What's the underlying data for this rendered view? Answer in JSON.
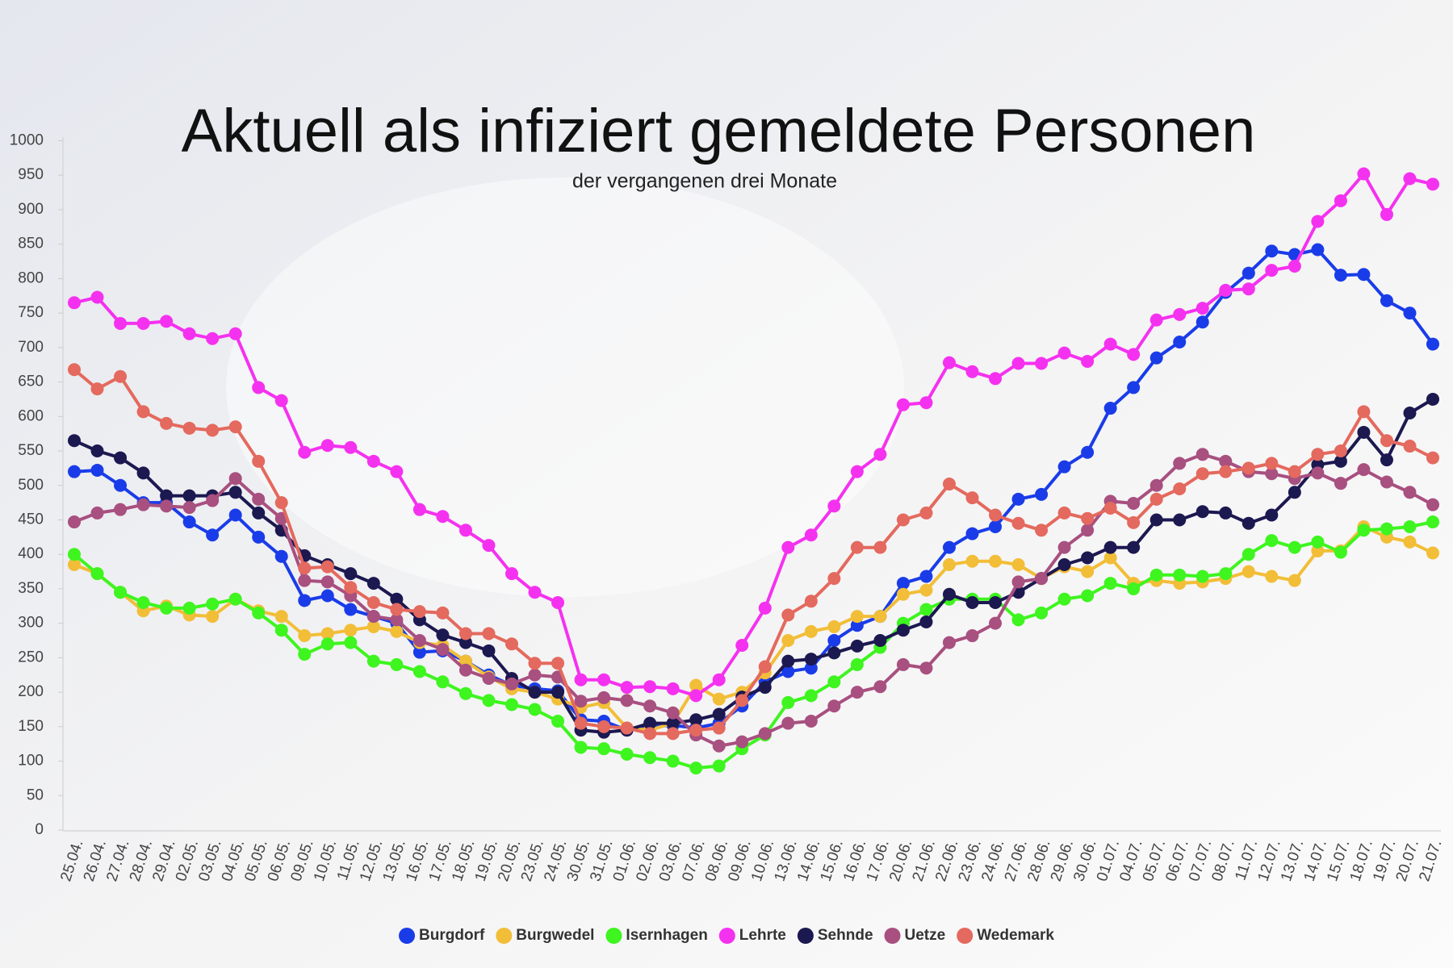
{
  "chart_data": {
    "type": "line",
    "title": "Aktuell als infiziert gemeldete Personen",
    "subtitle": "der vergangenen drei Monate",
    "categories": [
      "25.04.",
      "26.04.",
      "27.04.",
      "28.04.",
      "29.04.",
      "02.05.",
      "03.05.",
      "04.05.",
      "05.05.",
      "06.05.",
      "09.05.",
      "10.05.",
      "11.05.",
      "12.05.",
      "13.05.",
      "16.05.",
      "17.05.",
      "18.05.",
      "19.05.",
      "20.05.",
      "23.05.",
      "24.05.",
      "30.05.",
      "31.05.",
      "01.06.",
      "02.06.",
      "03.06.",
      "07.06.",
      "08.06.",
      "09.06.",
      "10.06.",
      "13.06.",
      "14.06.",
      "15.06.",
      "16.06.",
      "17.06.",
      "20.06.",
      "21.06.",
      "22.06.",
      "23.06.",
      "24.06.",
      "27.06.",
      "28.06.",
      "29.06.",
      "30.06.",
      "01.07.",
      "04.07.",
      "05.07.",
      "06.07.",
      "07.07.",
      "08.07.",
      "11.07.",
      "12.07.",
      "13.07.",
      "14.07.",
      "15.07.",
      "18.07.",
      "19.07.",
      "20.07.",
      "21.07."
    ],
    "series": [
      {
        "name": "Burgdorf",
        "color": "#1a3ce8",
        "values": [
          520,
          522,
          500,
          475,
          475,
          447,
          428,
          457,
          425,
          397,
          333,
          340,
          320,
          310,
          300,
          258,
          260,
          245,
          225,
          210,
          205,
          202,
          160,
          158,
          145,
          150,
          152,
          148,
          155,
          180,
          215,
          230,
          235,
          275,
          297,
          310,
          358,
          368,
          410,
          430,
          440,
          480,
          487,
          527,
          548,
          612,
          642,
          685,
          708,
          737,
          780,
          808,
          840,
          835,
          842,
          805,
          806,
          768,
          750,
          705
        ]
      },
      {
        "name": "Burgwedel",
        "color": "#f2be38",
        "values": [
          385,
          372,
          345,
          318,
          325,
          312,
          310,
          335,
          318,
          310,
          282,
          285,
          290,
          295,
          288,
          272,
          268,
          245,
          222,
          205,
          200,
          190,
          178,
          185,
          148,
          145,
          155,
          210,
          190,
          200,
          228,
          275,
          288,
          295,
          310,
          310,
          342,
          348,
          385,
          390,
          390,
          385,
          365,
          382,
          375,
          395,
          358,
          362,
          358,
          360,
          365,
          375,
          368,
          362,
          405,
          405,
          440,
          425,
          418,
          402
        ]
      },
      {
        "name": "Isernhagen",
        "color": "#3ef51f",
        "values": [
          400,
          372,
          345,
          330,
          322,
          322,
          328,
          335,
          315,
          290,
          255,
          270,
          272,
          245,
          240,
          230,
          215,
          198,
          188,
          182,
          175,
          158,
          120,
          118,
          110,
          105,
          100,
          90,
          93,
          118,
          138,
          185,
          195,
          215,
          240,
          265,
          300,
          320,
          335,
          335,
          335,
          305,
          315,
          335,
          340,
          358,
          350,
          370,
          370,
          368,
          372,
          400,
          420,
          410,
          418,
          403,
          435,
          437,
          440,
          447
        ]
      },
      {
        "name": "Lehrte",
        "color": "#f531f0",
        "values": [
          765,
          773,
          735,
          735,
          738,
          720,
          713,
          720,
          642,
          623,
          548,
          558,
          555,
          535,
          520,
          465,
          455,
          435,
          413,
          372,
          345,
          330,
          218,
          218,
          207,
          208,
          205,
          195,
          218,
          268,
          322,
          410,
          428,
          470,
          520,
          545,
          617,
          620,
          678,
          665,
          655,
          677,
          677,
          692,
          680,
          705,
          690,
          740,
          748,
          757,
          783,
          785,
          812,
          818,
          883,
          913,
          952,
          893,
          945,
          937
        ]
      },
      {
        "name": "Sehnde",
        "color": "#1c1850",
        "values": [
          565,
          550,
          540,
          518,
          485,
          485,
          485,
          490,
          460,
          435,
          398,
          385,
          372,
          358,
          335,
          305,
          283,
          272,
          260,
          220,
          200,
          200,
          145,
          142,
          145,
          155,
          155,
          160,
          168,
          193,
          207,
          245,
          248,
          257,
          267,
          275,
          290,
          302,
          342,
          330,
          330,
          345,
          365,
          385,
          395,
          410,
          410,
          450,
          450,
          462,
          460,
          445,
          457,
          490,
          530,
          535,
          577,
          537,
          605,
          625
        ]
      },
      {
        "name": "Uetze",
        "color": "#a85080",
        "values": [
          447,
          460,
          465,
          472,
          470,
          468,
          478,
          510,
          480,
          452,
          362,
          360,
          340,
          310,
          305,
          275,
          262,
          232,
          220,
          212,
          225,
          222,
          187,
          192,
          188,
          180,
          170,
          138,
          122,
          128,
          140,
          155,
          158,
          180,
          200,
          208,
          240,
          235,
          272,
          282,
          300,
          360,
          365,
          410,
          435,
          477,
          474,
          500,
          532,
          545,
          535,
          520,
          517,
          510,
          518,
          503,
          523,
          505,
          490,
          472
        ]
      },
      {
        "name": "Wedemark",
        "color": "#e4695e",
        "values": [
          668,
          640,
          658,
          607,
          590,
          583,
          580,
          585,
          535,
          475,
          380,
          382,
          352,
          330,
          320,
          317,
          315,
          285,
          285,
          270,
          242,
          242,
          155,
          150,
          148,
          140,
          140,
          145,
          148,
          188,
          237,
          312,
          332,
          365,
          410,
          410,
          450,
          460,
          502,
          482,
          457,
          445,
          435,
          460,
          452,
          467,
          446,
          480,
          495,
          517,
          520,
          525,
          532,
          520,
          545,
          550,
          607,
          565,
          557,
          540
        ]
      }
    ],
    "ylim": [
      0,
      1000
    ],
    "yticks": [
      0,
      50,
      100,
      150,
      200,
      250,
      300,
      350,
      400,
      450,
      500,
      550,
      600,
      650,
      700,
      750,
      800,
      850,
      900,
      950,
      1000
    ],
    "grid": false,
    "legend": "bottom"
  }
}
